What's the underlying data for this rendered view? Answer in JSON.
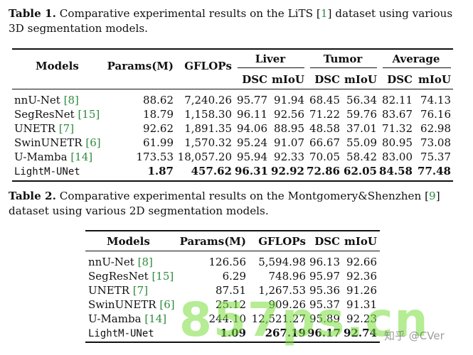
{
  "table1": {
    "label": "Table 1.",
    "caption_pre": "Comparative experimental results on the LiTS [",
    "caption_cite": "1",
    "caption_post": "] dataset using various 3D segmentation models.",
    "headers": {
      "models": "Models",
      "params": "Params(M)",
      "gflops": "GFLOPs",
      "liver": "Liver",
      "tumor": "Tumor",
      "average": "Average",
      "dsc": "DSC",
      "miou": "mIoU"
    },
    "rows": [
      {
        "name": "nnU-Net",
        "cite": "8",
        "params": "88.62",
        "gflops": "7,240.26",
        "liver_dsc": "95.77",
        "liver_miou": "91.94",
        "tumor_dsc": "68.45",
        "tumor_miou": "56.34",
        "avg_dsc": "82.11",
        "avg_miou": "74.13"
      },
      {
        "name": "SegResNet",
        "cite": "15",
        "params": "18.79",
        "gflops": "1,158.30",
        "liver_dsc": "96.11",
        "liver_miou": "92.56",
        "tumor_dsc": "71.22",
        "tumor_miou": "59.76",
        "avg_dsc": "83.67",
        "avg_miou": "76.16"
      },
      {
        "name": "UNETR",
        "cite": "7",
        "params": "92.62",
        "gflops": "1,891.35",
        "liver_dsc": "94.06",
        "liver_miou": "88.95",
        "tumor_dsc": "48.58",
        "tumor_miou": "37.01",
        "avg_dsc": "71.32",
        "avg_miou": "62.98"
      },
      {
        "name": "SwinUNETR",
        "cite": "6",
        "params": "61.99",
        "gflops": "1,570.32",
        "liver_dsc": "95.24",
        "liver_miou": "91.07",
        "tumor_dsc": "66.67",
        "tumor_miou": "55.09",
        "avg_dsc": "80.95",
        "avg_miou": "73.08"
      },
      {
        "name": "U-Mamba",
        "cite": "14",
        "params": "173.53",
        "gflops": "18,057.20",
        "liver_dsc": "95.94",
        "liver_miou": "92.33",
        "tumor_dsc": "70.05",
        "tumor_miou": "58.42",
        "avg_dsc": "83.00",
        "avg_miou": "75.37"
      }
    ],
    "final_row": {
      "name": "LightM-UNet",
      "params": "1.87",
      "gflops": "457.62",
      "liver_dsc": "96.31",
      "liver_miou": "92.92",
      "tumor_dsc": "72.86",
      "tumor_miou": "62.05",
      "avg_dsc": "84.58",
      "avg_miou": "77.48"
    }
  },
  "table2": {
    "label": "Table 2.",
    "caption_pre": "Comparative experimental results on the Montgomery&Shenzhen [",
    "caption_cite": "9",
    "caption_post": "] dataset using various 2D segmentation models.",
    "headers": {
      "models": "Models",
      "params": "Params(M)",
      "gflops": "GFLOPs",
      "dsc": "DSC",
      "miou": "mIoU"
    },
    "rows": [
      {
        "name": "nnU-Net",
        "cite": "8",
        "params": "126.56",
        "gflops": "5,594.98",
        "dsc": "96.13",
        "miou": "92.66"
      },
      {
        "name": "SegResNet",
        "cite": "15",
        "params": "6.29",
        "gflops": "748.96",
        "dsc": "95.97",
        "miou": "92.36"
      },
      {
        "name": "UNETR",
        "cite": "7",
        "params": "87.51",
        "gflops": "1,267.53",
        "dsc": "95.36",
        "miou": "91.26"
      },
      {
        "name": "SwinUNETR",
        "cite": "6",
        "params": "25.12",
        "gflops": "909.26",
        "dsc": "95.37",
        "miou": "91.31"
      },
      {
        "name": "U-Mamba",
        "cite": "14",
        "params": "244.10",
        "gflops": "12,521.27",
        "dsc": "95.89",
        "miou": "92.23"
      }
    ],
    "final_row": {
      "name": "LightM-UNet",
      "params": "1.09",
      "gflops": "267.19",
      "dsc": "96.17",
      "miou": "92.74"
    }
  },
  "watermark": {
    "big": "857ps.cn",
    "small": "知乎 @CVer"
  }
}
